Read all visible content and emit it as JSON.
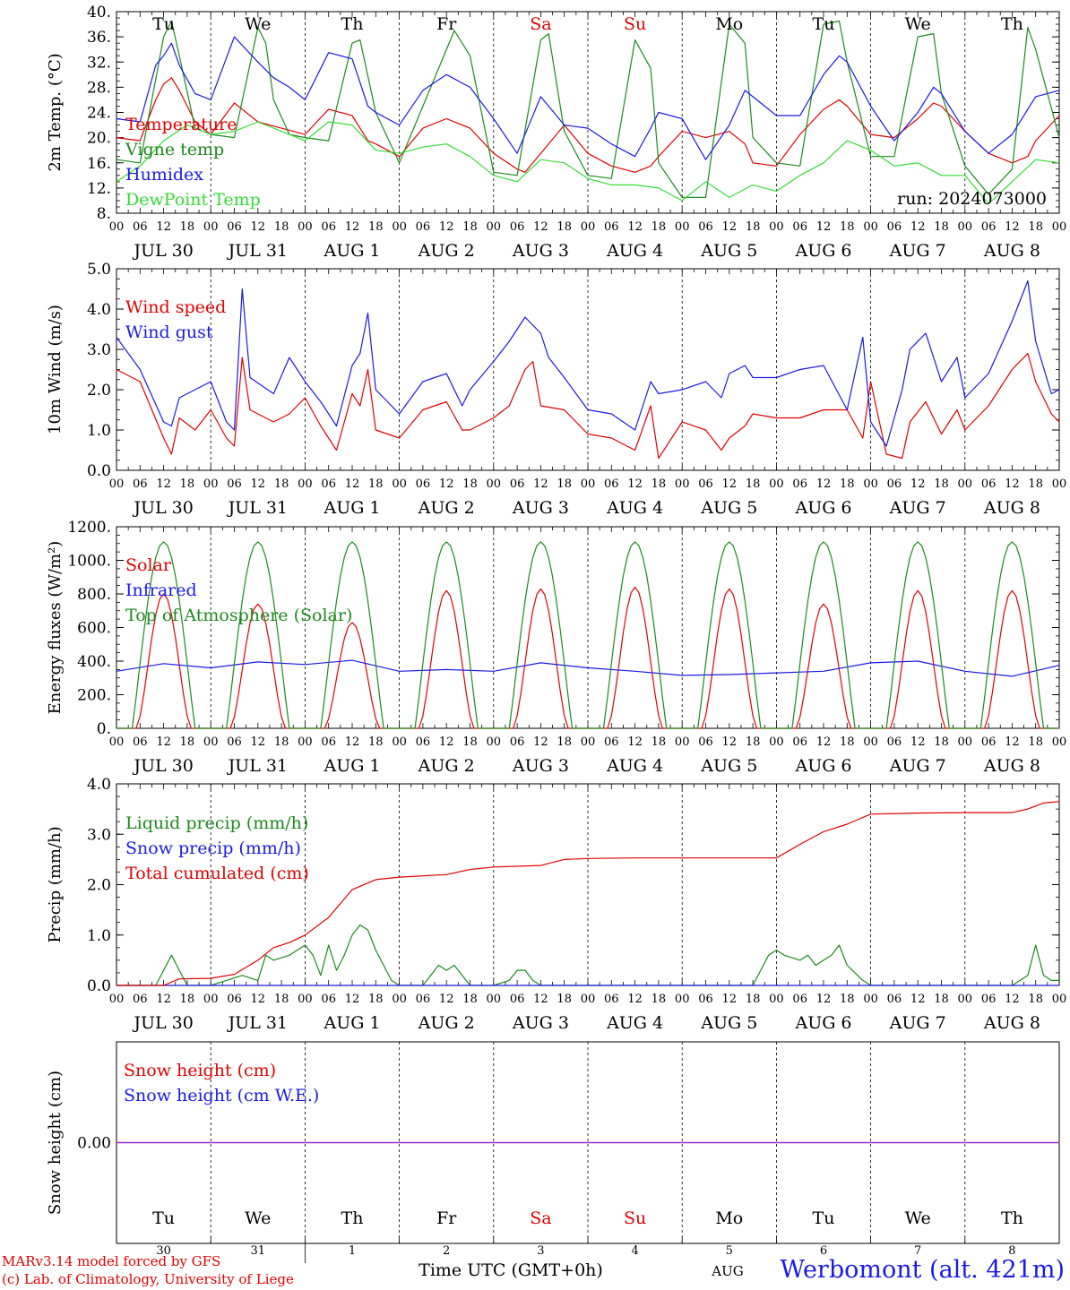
{
  "chart_data": [
    {
      "type": "line",
      "ylabel": "2m Temp. (°C)",
      "ylim": [
        8,
        40
      ],
      "yticks": [
        "8.",
        "12.",
        "16.",
        "20.",
        "24.",
        "28.",
        "32.",
        "36.",
        "40."
      ],
      "annotation": "run: 2024073000",
      "day_names_top": true,
      "x_unit": "hours since 2024-07-30 00 UTC",
      "series": [
        {
          "name": "Temperature",
          "color": "#e00000",
          "x": [
            0,
            6,
            10,
            12,
            14,
            16,
            20,
            24,
            30,
            36,
            42,
            48,
            54,
            60,
            64,
            66,
            72,
            78,
            84,
            90,
            96,
            102,
            104,
            108,
            114,
            120,
            126,
            132,
            136,
            138,
            144,
            150,
            156,
            160,
            162,
            168,
            174,
            180,
            184,
            186,
            192,
            198,
            204,
            208,
            210,
            216,
            222,
            228,
            232,
            234,
            240
          ],
          "y": [
            20,
            19.5,
            26,
            28.5,
            29.5,
            27.5,
            22.5,
            20.5,
            25.5,
            22.5,
            21.5,
            20.5,
            24.5,
            23.5,
            19.5,
            19,
            17,
            21.5,
            23,
            21.5,
            17.5,
            15,
            14.5,
            17.5,
            22,
            17.5,
            15.5,
            14.5,
            15.5,
            17,
            21,
            20,
            21,
            19,
            16,
            15.5,
            20.5,
            24.5,
            26,
            25,
            20.5,
            20,
            23,
            25.5,
            25,
            21,
            17.5,
            16,
            17,
            19.5,
            23.5
          ]
        },
        {
          "name": "Vigne temp",
          "color": "#1c8a1c",
          "x": [
            0,
            6,
            12,
            14,
            16,
            20,
            24,
            30,
            36,
            38,
            40,
            44,
            48,
            54,
            60,
            62,
            66,
            72,
            80,
            86,
            90,
            96,
            102,
            108,
            110,
            114,
            120,
            126,
            132,
            136,
            138,
            144,
            150,
            156,
            160,
            162,
            168,
            174,
            180,
            184,
            186,
            192,
            198,
            204,
            208,
            210,
            216,
            222,
            228,
            232,
            234,
            240
          ],
          "y": [
            16.5,
            16,
            36,
            38.5,
            33,
            21.5,
            20.5,
            20,
            37.5,
            35,
            26,
            20.5,
            20,
            19.5,
            35,
            35.5,
            24,
            16,
            28,
            37,
            33,
            14.5,
            14,
            35.5,
            36.5,
            21,
            14,
            13.5,
            35.5,
            31,
            16,
            10.5,
            10.5,
            38,
            35,
            20,
            16,
            15.5,
            38,
            38.5,
            32,
            17,
            17,
            36,
            36.5,
            27,
            15.5,
            11,
            15,
            37.5,
            34,
            20
          ]
        },
        {
          "name": "Humidex",
          "color": "#1a1ae8",
          "x": [
            0,
            6,
            10,
            12,
            14,
            16,
            20,
            24,
            30,
            36,
            40,
            44,
            48,
            54,
            60,
            64,
            66,
            72,
            78,
            84,
            90,
            96,
            102,
            108,
            114,
            120,
            126,
            132,
            136,
            138,
            144,
            150,
            156,
            160,
            162,
            168,
            174,
            180,
            184,
            186,
            192,
            198,
            204,
            208,
            210,
            216,
            222,
            228,
            232,
            234,
            240
          ],
          "y": [
            23,
            22.5,
            31.5,
            33,
            35,
            31.5,
            27,
            26,
            36,
            32,
            29.5,
            28,
            26,
            33.5,
            32.5,
            25,
            24,
            22,
            27.5,
            30,
            28,
            23,
            17.5,
            26.5,
            22,
            21.5,
            19,
            17,
            21.5,
            24,
            23,
            16.5,
            22,
            27.5,
            26.5,
            23.5,
            23.5,
            30,
            33,
            32,
            25,
            19.5,
            24,
            28,
            27,
            21,
            17.5,
            20.5,
            24.5,
            26.5,
            27.5
          ]
        },
        {
          "name": "DewPoint Temp",
          "color": "#33dd33",
          "x": [
            0,
            6,
            12,
            18,
            24,
            30,
            36,
            42,
            48,
            54,
            60,
            66,
            72,
            78,
            84,
            90,
            96,
            102,
            108,
            114,
            120,
            126,
            132,
            138,
            144,
            150,
            156,
            162,
            168,
            174,
            180,
            186,
            192,
            198,
            204,
            210,
            216,
            222,
            228,
            234,
            240
          ],
          "y": [
            13,
            15.5,
            19.5,
            22,
            20.5,
            21,
            22.5,
            21,
            19.5,
            22.5,
            22,
            18,
            17.5,
            18.5,
            19,
            17,
            14,
            13,
            16.5,
            16,
            13.5,
            12.5,
            12.5,
            12,
            10,
            13,
            10.5,
            12.5,
            11.5,
            14,
            16,
            19.5,
            18,
            15.5,
            16,
            14,
            14,
            9.5,
            13,
            16.5,
            16
          ]
        }
      ]
    },
    {
      "type": "line",
      "ylabel": "10m Wind (m/s)",
      "ylim": [
        0,
        5
      ],
      "yticks": [
        "0.0",
        "1.0",
        "2.0",
        "3.0",
        "4.0",
        "5.0"
      ],
      "x_unit": "hours since 2024-07-30 00 UTC",
      "series": [
        {
          "name": "Wind speed",
          "color": "#e00000",
          "x": [
            0,
            6,
            12,
            14,
            16,
            20,
            24,
            28,
            30,
            32,
            34,
            40,
            44,
            48,
            52,
            56,
            60,
            62,
            64,
            66,
            72,
            78,
            84,
            88,
            90,
            96,
            100,
            104,
            106,
            108,
            114,
            120,
            126,
            132,
            136,
            138,
            144,
            150,
            154,
            156,
            160,
            162,
            168,
            174,
            180,
            186,
            190,
            192,
            196,
            200,
            202,
            206,
            210,
            214,
            216,
            222,
            228,
            232,
            234,
            238,
            240
          ],
          "y": [
            2.5,
            2.2,
            0.8,
            0.4,
            1.3,
            1,
            1.5,
            0.8,
            0.6,
            2.8,
            1.5,
            1.2,
            1.4,
            1.8,
            1.1,
            0.5,
            1.9,
            1.6,
            2.5,
            1,
            0.8,
            1.5,
            1.7,
            1,
            1,
            1.3,
            1.6,
            2.5,
            2.7,
            1.6,
            1.5,
            0.9,
            0.8,
            0.5,
            1.6,
            0.3,
            1.2,
            1,
            0.5,
            0.8,
            1.1,
            1.4,
            1.3,
            1.3,
            1.5,
            1.5,
            0.8,
            2.2,
            0.4,
            0.3,
            1.2,
            1.7,
            0.9,
            1.5,
            1,
            1.6,
            2.5,
            2.9,
            2.2,
            1.4,
            1.2
          ]
        },
        {
          "name": "Wind gust",
          "color": "#1a1ae8",
          "x": [
            0,
            6,
            12,
            14,
            16,
            20,
            24,
            28,
            30,
            32,
            34,
            40,
            44,
            48,
            52,
            56,
            60,
            62,
            64,
            66,
            72,
            78,
            84,
            88,
            90,
            96,
            100,
            104,
            106,
            108,
            110,
            114,
            120,
            126,
            132,
            136,
            138,
            144,
            150,
            154,
            156,
            160,
            162,
            168,
            174,
            180,
            186,
            190,
            192,
            196,
            200,
            202,
            206,
            210,
            214,
            216,
            222,
            228,
            232,
            234,
            238,
            240
          ],
          "y": [
            3.3,
            2.5,
            1.2,
            1.1,
            1.8,
            2,
            2.2,
            1.2,
            1,
            4.5,
            2.3,
            1.9,
            2.8,
            2.2,
            1.7,
            1.1,
            2.6,
            2.9,
            3.9,
            2,
            1.4,
            2.2,
            2.4,
            1.6,
            2,
            2.7,
            3.2,
            3.8,
            3.6,
            3.4,
            2.8,
            2.3,
            1.5,
            1.4,
            1,
            2.2,
            1.9,
            2,
            2.2,
            1.8,
            2.4,
            2.6,
            2.3,
            2.3,
            2.5,
            2.6,
            1.5,
            3.3,
            1.2,
            0.6,
            2,
            3,
            3.4,
            2.2,
            2.8,
            1.8,
            2.4,
            3.7,
            4.7,
            3.2,
            1.9,
            2
          ]
        }
      ]
    },
    {
      "type": "line",
      "ylabel": "Energy fluxes (W/m²)",
      "ylim": [
        0,
        1200
      ],
      "yticks": [
        "0.",
        "200.",
        "400.",
        "600.",
        "800.",
        "1000.",
        "1200."
      ],
      "x_unit": "hours since 2024-07-30 00 UTC",
      "peaks_solar": [
        800,
        740,
        630,
        820,
        830,
        840,
        830,
        740,
        820,
        820
      ],
      "peak_toa": 1110,
      "series": [
        {
          "name": "Solar",
          "color": "#e00000"
        },
        {
          "name": "Infrared",
          "color": "#1a1ae8",
          "x": [
            0,
            12,
            24,
            36,
            48,
            60,
            72,
            84,
            96,
            108,
            120,
            132,
            144,
            156,
            168,
            180,
            192,
            204,
            216,
            228,
            240
          ],
          "y": [
            340,
            385,
            360,
            395,
            380,
            405,
            340,
            350,
            340,
            390,
            360,
            340,
            315,
            320,
            330,
            340,
            390,
            400,
            340,
            310,
            375
          ]
        },
        {
          "name": "Top of Atmosphere (Solar)",
          "color": "#1c8a1c"
        }
      ]
    },
    {
      "type": "line",
      "ylabel": "Precip (mm/h)",
      "ylim": [
        0,
        4
      ],
      "yticks": [
        "0.0",
        "1.0",
        "2.0",
        "3.0",
        "4.0"
      ],
      "x_unit": "hours since 2024-07-30 00 UTC",
      "series": [
        {
          "name": "Liquid precip (mm/h)",
          "color": "#1c8a1c",
          "x": [
            0,
            10,
            14,
            16,
            18,
            20,
            24,
            28,
            32,
            36,
            38,
            40,
            44,
            48,
            50,
            52,
            54,
            56,
            58,
            60,
            62,
            64,
            66,
            68,
            70,
            72,
            78,
            82,
            84,
            86,
            88,
            90,
            96,
            100,
            102,
            104,
            106,
            108,
            114,
            120,
            126,
            132,
            138,
            144,
            150,
            156,
            162,
            166,
            168,
            170,
            174,
            176,
            178,
            180,
            182,
            184,
            186,
            190,
            192,
            198,
            204,
            210,
            216,
            228,
            232,
            234,
            236,
            238,
            240
          ],
          "y": [
            0,
            0,
            0.6,
            0.3,
            0,
            0,
            0,
            0.1,
            0.2,
            0.1,
            0.6,
            0.5,
            0.6,
            0.8,
            0.6,
            0.2,
            0.8,
            0.3,
            0.6,
            1,
            1.2,
            1.1,
            0.7,
            0.4,
            0.1,
            0,
            0,
            0.4,
            0.3,
            0.4,
            0.2,
            0,
            0,
            0.1,
            0.3,
            0.3,
            0.1,
            0,
            0,
            0,
            0,
            0,
            0,
            0,
            0,
            0,
            0,
            0.6,
            0.7,
            0.6,
            0.5,
            0.6,
            0.4,
            0.5,
            0.6,
            0.8,
            0.4,
            0.1,
            0,
            0,
            0,
            0,
            0,
            0,
            0.2,
            0.8,
            0.2,
            0.1,
            0.1
          ]
        },
        {
          "name": "Snow precip (mm/h)",
          "color": "#1a1ae8",
          "x": [
            0,
            240
          ],
          "y": [
            0,
            0
          ]
        },
        {
          "name": "Total cumulated (cm)",
          "color": "#e00000",
          "x": [
            0,
            12,
            16,
            24,
            30,
            36,
            40,
            44,
            48,
            54,
            60,
            66,
            72,
            84,
            90,
            96,
            108,
            114,
            120,
            132,
            144,
            156,
            168,
            174,
            180,
            186,
            192,
            204,
            216,
            228,
            232,
            236,
            240
          ],
          "y": [
            0,
            0,
            0.13,
            0.14,
            0.22,
            0.5,
            0.75,
            0.85,
            1,
            1.35,
            1.9,
            2.1,
            2.15,
            2.2,
            2.3,
            2.35,
            2.38,
            2.5,
            2.52,
            2.53,
            2.53,
            2.53,
            2.53,
            2.8,
            3.05,
            3.2,
            3.4,
            3.42,
            3.43,
            3.43,
            3.5,
            3.62,
            3.65
          ]
        }
      ]
    },
    {
      "type": "line",
      "ylabel": "Snow height (cm)",
      "ylim": [
        -1,
        1
      ],
      "yticks": [
        "0.00"
      ],
      "x_unit": "hours since 2024-07-30 00 UTC",
      "series": [
        {
          "name": "Snow height (cm)",
          "color": "#e00000",
          "x": [
            0,
            240
          ],
          "y": [
            0,
            0
          ]
        },
        {
          "name": "Snow height (cm W.E.)",
          "color": "#1a1ae8",
          "x": [
            0,
            240
          ],
          "y": [
            0,
            0
          ]
        }
      ]
    }
  ],
  "x_axis": {
    "hour_labels": [
      "00",
      "06",
      "12",
      "18"
    ],
    "date_labels": [
      "JUL 30",
      "JUL 31",
      "AUG  1",
      "AUG  2",
      "AUG  3",
      "AUG  4",
      "AUG  5",
      "AUG  6",
      "AUG  7",
      "AUG  8"
    ],
    "day_names": [
      "Tu",
      "We",
      "Th",
      "Fr",
      "Sa",
      "Su",
      "Mo",
      "Tu",
      "We",
      "Th"
    ],
    "weekend_days": [
      4,
      5
    ],
    "day_numbers": [
      "30",
      "31",
      "1",
      "2",
      "3",
      "4",
      "5",
      "6",
      "7",
      "8"
    ],
    "month_label": "AUG",
    "xlabel": "Time UTC (GMT+0h)"
  },
  "colors": {
    "red": "#e00000",
    "blue": "#1a1ae8",
    "darkgreen": "#1c8a1c",
    "lightgreen": "#33dd33",
    "snowline": "#8a2be2"
  },
  "footer": {
    "credit_line1": "MARv3.14 model forced by GFS",
    "credit_line2": "(c) Lab. of Climatology, University of Liege",
    "station": "Werbomont (alt. 421m)"
  }
}
